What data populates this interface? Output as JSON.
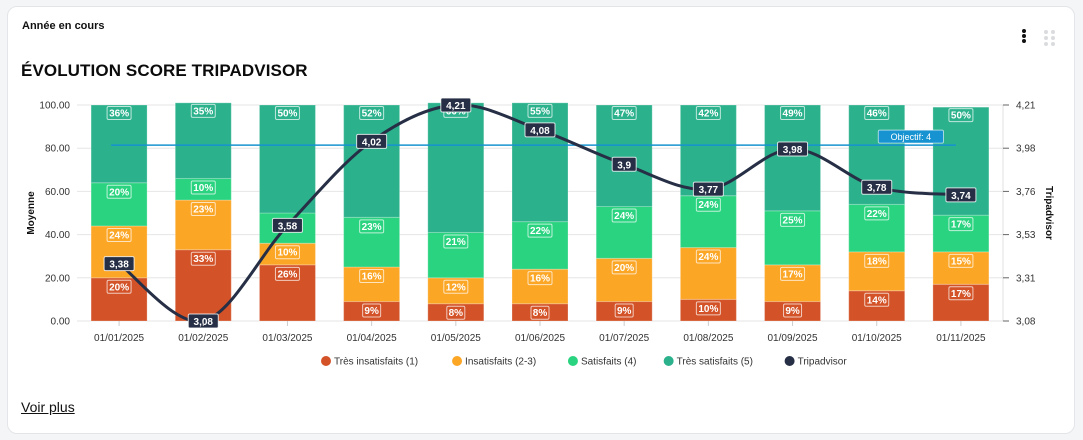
{
  "card": {
    "subtitle": "Année en cours",
    "title": "ÉVOLUTION SCORE TRIPADVISOR",
    "menu_icon": "kebab-menu-icon",
    "drag_icon": "drag-handle-icon",
    "link_label": "Voir plus"
  },
  "colors": {
    "tres_insatisfaits": "#d35227",
    "insatisfaits": "#fca626",
    "satisfaits": "#2ad37f",
    "tres_satisfaits": "#2bb18c",
    "tripadvisor": "#262f45",
    "objectif": "#1793d1"
  },
  "chart_data": {
    "type": "bar",
    "stacked": true,
    "title": "ÉVOLUTION SCORE TRIPADVISOR",
    "categories": [
      "01/01/2025",
      "01/02/2025",
      "01/03/2025",
      "01/04/2025",
      "01/05/2025",
      "01/06/2025",
      "01/07/2025",
      "01/08/2025",
      "01/09/2025",
      "01/10/2025",
      "01/11/2025"
    ],
    "ylabel": "Moyenne",
    "y2label": "Tripadvisor",
    "ylim": [
      0,
      100
    ],
    "yticks": [
      "0.00",
      "20.00",
      "40.00",
      "60.00",
      "80.00",
      "100.00"
    ],
    "y2lim": [
      3.08,
      4.21
    ],
    "y2ticks": [
      "3,08",
      "3,31",
      "3,53",
      "3,76",
      "3,98",
      "4,21"
    ],
    "grid": true,
    "legend_position": "bottom",
    "series": [
      {
        "name": "Très insatisfaits (1)",
        "key": "tres_insatisfaits",
        "values": [
          20,
          33,
          26,
          9,
          8,
          8,
          9,
          10,
          9,
          14,
          17
        ]
      },
      {
        "name": "Insatisfaits (2-3)",
        "key": "insatisfaits",
        "values": [
          24,
          23,
          10,
          16,
          12,
          16,
          20,
          24,
          17,
          18,
          15
        ]
      },
      {
        "name": "Satisfaits (4)",
        "key": "satisfaits",
        "values": [
          20,
          10,
          14,
          23,
          21,
          22,
          24,
          24,
          25,
          22,
          17
        ]
      },
      {
        "name": "Très satisfaits (5)",
        "key": "tres_satisfaits",
        "values": [
          36,
          35,
          50,
          52,
          60,
          55,
          47,
          42,
          49,
          46,
          50
        ]
      }
    ],
    "labels": [
      [
        "20%",
        "33%",
        "26%",
        "9%",
        "8%",
        "8%",
        "9%",
        "10%",
        "9%",
        "14%",
        "17%"
      ],
      [
        "24%",
        "23%",
        "10%",
        "16%",
        "12%",
        "16%",
        "20%",
        "24%",
        "17%",
        "18%",
        "15%"
      ],
      [
        "20%",
        "10%",
        "",
        "23%",
        "21%",
        "22%",
        "24%",
        "24%",
        "25%",
        "22%",
        "17%"
      ],
      [
        "36%",
        "35%",
        "50%",
        "52%",
        "60%",
        "55%",
        "47%",
        "42%",
        "49%",
        "46%",
        "50%"
      ]
    ],
    "line": {
      "name": "Tripadvisor",
      "axis": "right",
      "values": [
        3.38,
        3.08,
        3.58,
        4.02,
        4.21,
        4.08,
        3.9,
        3.77,
        3.98,
        3.78,
        3.74
      ],
      "labels": [
        "3,38",
        "3,08",
        "3,58",
        "4,02",
        "4,21",
        "4,08",
        "3,9",
        "3,77",
        "3,98",
        "3,78",
        "3,74"
      ]
    },
    "reference_line": {
      "label": "Objectif: 4",
      "value": 4,
      "axis": "right"
    }
  }
}
